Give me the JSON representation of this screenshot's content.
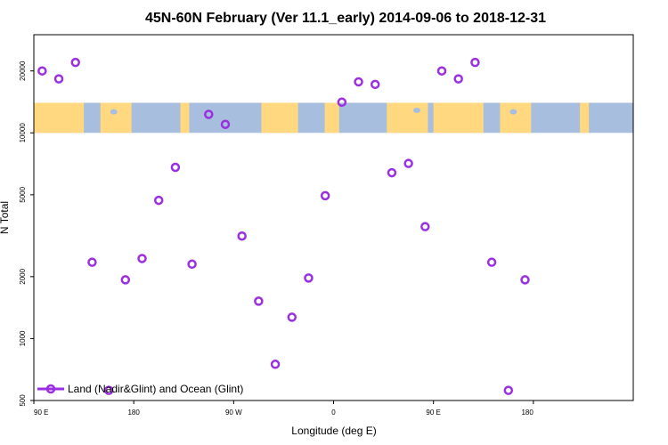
{
  "chart_data": {
    "type": "scatter",
    "title": "45N-60N February (Ver 11.1_early)   2014-09-06 to 2018-12-31",
    "xlabel": "Longitude (deg E)",
    "ylabel": "N Total",
    "x_scale": "longitude from 90 E eastward through 180 and 0 back to 180",
    "y_scale": "log",
    "ylim": [
      500,
      30000
    ],
    "xticks": [
      {
        "lon": 90,
        "label": "90 E"
      },
      {
        "lon": 180,
        "label": "180"
      },
      {
        "lon": -90,
        "label": "90 W"
      },
      {
        "lon": 0,
        "label": "0"
      },
      {
        "lon": 90,
        "label": "90 E",
        "wrap": true
      },
      {
        "lon": 180,
        "label": "180",
        "wrap": true
      }
    ],
    "yticks": [
      {
        "value": 500,
        "label": "500"
      },
      {
        "value": 1000,
        "label": "1000"
      },
      {
        "value": 2000,
        "label": "2000"
      },
      {
        "value": 5000,
        "label": "5000"
      },
      {
        "value": 10000,
        "label": "10000"
      },
      {
        "value": 20000,
        "label": "20000"
      }
    ],
    "map_band": {
      "y_range": [
        10000,
        14000
      ],
      "land_color": "#ffd880",
      "ocean_color": "#a8bedf"
    },
    "series": [
      {
        "name": "Land (Nadir&Glint) and Ocean (Glint)",
        "color": "#9b30e0",
        "marker": "open-circle",
        "points": [
          {
            "lon": 97.5,
            "y": 20000
          },
          {
            "lon": 112.5,
            "y": 18300
          },
          {
            "lon": 127.5,
            "y": 22000
          },
          {
            "lon": 142.5,
            "y": 2350
          },
          {
            "lon": 157.5,
            "y": 560
          },
          {
            "lon": 172.5,
            "y": 1930
          },
          {
            "lon": -172.5,
            "y": 2450
          },
          {
            "lon": -157.5,
            "y": 4700
          },
          {
            "lon": -142.5,
            "y": 6800
          },
          {
            "lon": -127.5,
            "y": 2300
          },
          {
            "lon": -112.5,
            "y": 12300
          },
          {
            "lon": -97.5,
            "y": 11000
          },
          {
            "lon": -82.5,
            "y": 3150
          },
          {
            "lon": -67.5,
            "y": 1520
          },
          {
            "lon": -52.5,
            "y": 750
          },
          {
            "lon": -37.5,
            "y": 1270
          },
          {
            "lon": -22.5,
            "y": 1970
          },
          {
            "lon": -7.5,
            "y": 4950
          },
          {
            "lon": 7.5,
            "y": 14100
          },
          {
            "lon": 22.5,
            "y": 17700
          },
          {
            "lon": 37.5,
            "y": 17200
          },
          {
            "lon": 52.5,
            "y": 6400
          },
          {
            "lon": 67.5,
            "y": 7100
          },
          {
            "lon": 82.5,
            "y": 3500
          },
          {
            "lon": 97.5,
            "y": 20000,
            "wrap": true
          },
          {
            "lon": 112.5,
            "y": 18300,
            "wrap": true
          },
          {
            "lon": 127.5,
            "y": 22000,
            "wrap": true
          },
          {
            "lon": 142.5,
            "y": 2350,
            "wrap": true
          },
          {
            "lon": 157.5,
            "y": 560,
            "wrap": true
          },
          {
            "lon": 172.5,
            "y": 1930,
            "wrap": true
          }
        ]
      }
    ],
    "legend": {
      "position": "bottom-left",
      "label": "Land (Nadir&Glint) and Ocean (Glint)"
    },
    "grid": false
  }
}
